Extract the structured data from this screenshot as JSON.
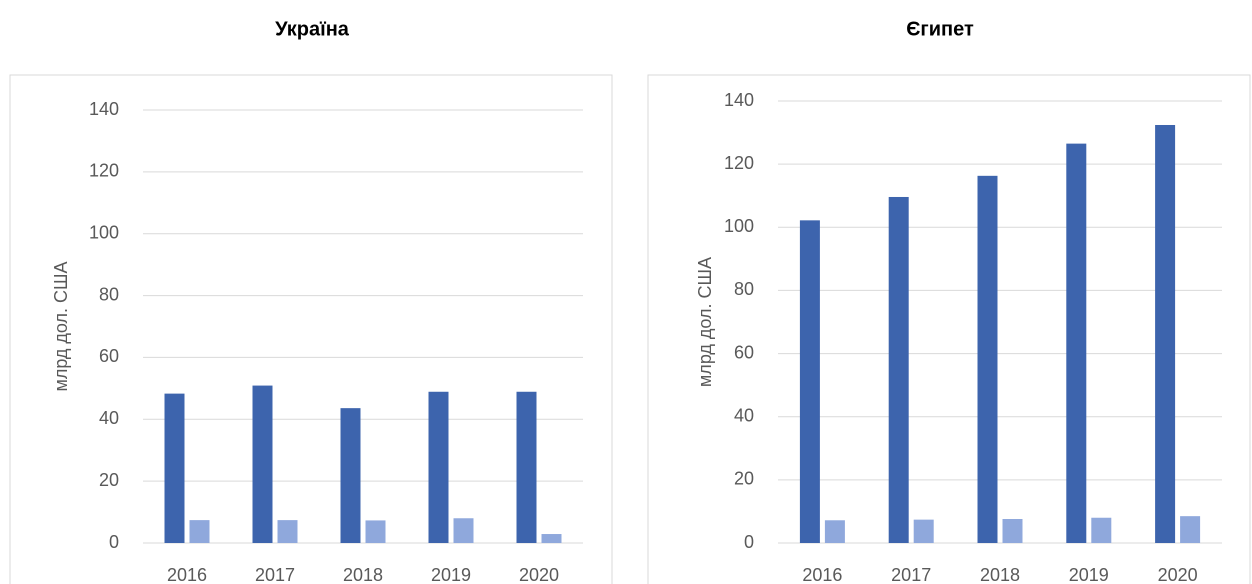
{
  "chart_data": [
    {
      "type": "bar",
      "title": "Україна",
      "ylabel": "млрд дол. США",
      "categories": [
        "2016",
        "2017",
        "2018",
        "2019",
        "2020"
      ],
      "series": [
        {
          "color": "#3d64ad",
          "values": [
            48.3,
            50.9,
            43.6,
            48.9,
            48.9
          ]
        },
        {
          "color": "#8fa8dc",
          "values": [
            7.4,
            7.4,
            7.3,
            8.0,
            2.9
          ]
        }
      ],
      "ylim": [
        0,
        140
      ],
      "yticks": [
        0,
        20,
        40,
        60,
        80,
        100,
        120,
        140
      ],
      "grid": true
    },
    {
      "type": "bar",
      "title": "Єгипет",
      "ylabel": "млрд дол. США",
      "categories": [
        "2016",
        "2017",
        "2018",
        "2019",
        "2020"
      ],
      "series": [
        {
          "color": "#3d64ad",
          "values": [
            102.2,
            109.6,
            116.3,
            126.5,
            132.4
          ]
        },
        {
          "color": "#8fa8dc",
          "values": [
            7.2,
            7.4,
            7.6,
            8.0,
            8.5
          ]
        }
      ],
      "ylim": [
        0,
        140
      ],
      "yticks": [
        0,
        20,
        40,
        60,
        80,
        100,
        120,
        140
      ],
      "grid": true
    }
  ]
}
